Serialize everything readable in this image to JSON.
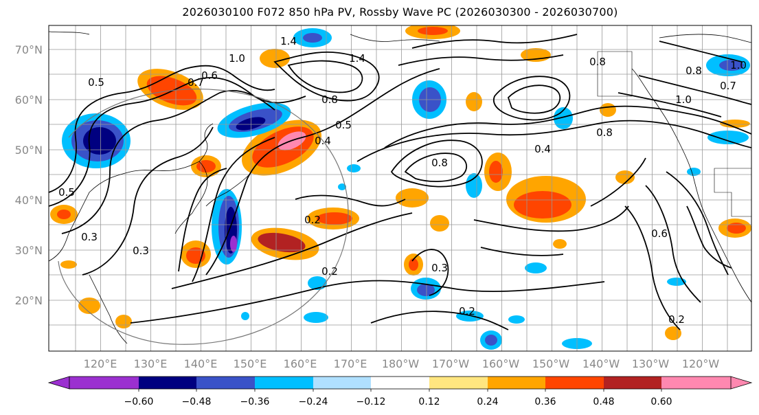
{
  "title": "2026030100 F072 850 hPa PV, Rossby Wave PC (2026030300 - 2026030700)",
  "lat_labels": [
    "70°N",
    "60°N",
    "50°N",
    "40°N",
    "30°N",
    "20°N"
  ],
  "lon_labels": [
    "120°E",
    "130°E",
    "140°E",
    "150°E",
    "160°E",
    "170°E",
    "180°W",
    "170°W",
    "160°W",
    "150°W",
    "140°W",
    "130°W",
    "120°W"
  ],
  "colorbar": {
    "colors": [
      "#9b30d0",
      "#000080",
      "#3a52c8",
      "#00bfff",
      "#b0e0ff",
      "#ffffff",
      "#ffe680",
      "#ffa500",
      "#ff4500",
      "#b22222",
      "#ff88b0"
    ],
    "ticks": [
      "−0.60",
      "−0.48",
      "−0.36",
      "−0.24",
      "−0.12",
      "0.12",
      "0.24",
      "0.36",
      "0.48",
      "0.60"
    ]
  },
  "contour_labels": [
    "1.4",
    "1.4",
    "1.0",
    "0.8",
    "0.5",
    "0.4",
    "0.8",
    "0.2",
    "0.2",
    "0.3",
    "0.2",
    "1.0",
    "0.7",
    "0.5",
    "0.7",
    "0.8",
    "0.6",
    "0.3",
    "0.4",
    "1.0",
    "0.8",
    "0.6",
    "0.3",
    "0.2",
    "0.5",
    "0.8"
  ],
  "chart_data": {
    "type": "map",
    "title": "2026030100 F072 850 hPa PV, Rossby Wave PC (2026030300 - 2026030700)",
    "lon_range": [
      "110°E",
      "115°W"
    ],
    "lat_range": [
      10,
      75
    ],
    "shading_levels": [
      -0.6,
      -0.48,
      -0.36,
      -0.24,
      -0.12,
      0.12,
      0.24,
      0.36,
      0.48,
      0.6
    ],
    "contour_variable": "850 hPa PV"
  }
}
